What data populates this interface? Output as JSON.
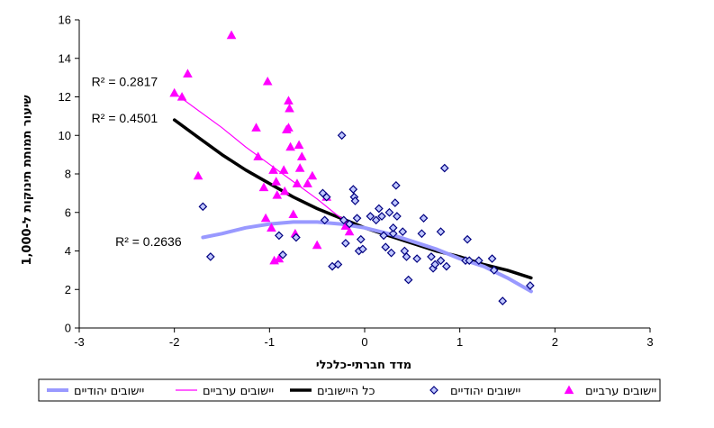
{
  "chart_data": {
    "type": "scatter",
    "xlabel": "מדד חברתי-כלכלי",
    "ylabel": "שיעור תמותת תינוקות ל-1,000",
    "xlim": [
      -3,
      3
    ],
    "ylim": [
      0,
      16
    ],
    "x_ticks": [
      -3,
      -2,
      -1,
      0,
      1,
      2,
      3
    ],
    "y_ticks": [
      0,
      2,
      4,
      6,
      8,
      10,
      12,
      14,
      16
    ],
    "x_tick_labels": [
      "-3",
      "-2",
      "-1",
      "0",
      "1",
      "2",
      "3"
    ],
    "y_tick_labels": [
      "0",
      "2",
      "4",
      "6",
      "8",
      "10",
      "12",
      "14",
      "16"
    ],
    "grid": false,
    "legend_position": "bottom",
    "series": [
      {
        "name": "יישובים ערביים",
        "kind": "points",
        "marker": "triangle",
        "color": "#FF00FF",
        "points": [
          [
            -2.0,
            12.2
          ],
          [
            -1.92,
            12.0
          ],
          [
            -1.86,
            13.2
          ],
          [
            -1.75,
            7.9
          ],
          [
            -1.4,
            15.2
          ],
          [
            -1.14,
            10.4
          ],
          [
            -1.12,
            8.9
          ],
          [
            -1.06,
            7.3
          ],
          [
            -1.04,
            5.7
          ],
          [
            -1.02,
            12.8
          ],
          [
            -0.98,
            5.2
          ],
          [
            -0.96,
            8.2
          ],
          [
            -0.93,
            7.6
          ],
          [
            -0.92,
            6.9
          ],
          [
            -0.95,
            3.5
          ],
          [
            -0.9,
            3.6
          ],
          [
            -0.85,
            8.2
          ],
          [
            -0.84,
            7.1
          ],
          [
            -0.82,
            10.3
          ],
          [
            -0.8,
            10.4
          ],
          [
            -0.8,
            11.8
          ],
          [
            -0.79,
            11.4
          ],
          [
            -0.78,
            9.4
          ],
          [
            -0.75,
            5.9
          ],
          [
            -0.73,
            4.9
          ],
          [
            -0.71,
            7.5
          ],
          [
            -0.69,
            9.5
          ],
          [
            -0.68,
            8.3
          ],
          [
            -0.66,
            8.9
          ],
          [
            -0.6,
            7.5
          ],
          [
            -0.55,
            7.9
          ],
          [
            -0.5,
            4.3
          ],
          [
            -0.4,
            6.8
          ],
          [
            -0.2,
            5.3
          ],
          [
            -0.16,
            5.0
          ]
        ]
      },
      {
        "name": "יישובים יהודיים",
        "kind": "points",
        "marker": "diamond",
        "color": "#000080",
        "fill": "#C0C8FF",
        "points": [
          [
            -1.7,
            6.3
          ],
          [
            -1.62,
            3.7
          ],
          [
            -0.9,
            4.8
          ],
          [
            -0.86,
            3.8
          ],
          [
            -0.72,
            4.7
          ],
          [
            -0.44,
            7.0
          ],
          [
            -0.42,
            5.6
          ],
          [
            -0.4,
            6.8
          ],
          [
            -0.34,
            3.2
          ],
          [
            -0.28,
            3.3
          ],
          [
            -0.24,
            10.0
          ],
          [
            -0.22,
            5.6
          ],
          [
            -0.2,
            4.4
          ],
          [
            -0.16,
            5.4
          ],
          [
            -0.12,
            7.2
          ],
          [
            -0.11,
            6.8
          ],
          [
            -0.1,
            6.6
          ],
          [
            -0.08,
            5.7
          ],
          [
            -0.06,
            4.0
          ],
          [
            -0.04,
            4.6
          ],
          [
            -0.02,
            4.1
          ],
          [
            0.06,
            5.8
          ],
          [
            0.12,
            5.6
          ],
          [
            0.15,
            6.2
          ],
          [
            0.18,
            5.8
          ],
          [
            0.2,
            4.8
          ],
          [
            0.22,
            4.2
          ],
          [
            0.26,
            6.0
          ],
          [
            0.28,
            3.9
          ],
          [
            0.3,
            4.9
          ],
          [
            0.3,
            5.2
          ],
          [
            0.32,
            6.5
          ],
          [
            0.33,
            7.4
          ],
          [
            0.34,
            5.8
          ],
          [
            0.4,
            5.0
          ],
          [
            0.42,
            4.0
          ],
          [
            0.44,
            3.7
          ],
          [
            0.46,
            2.5
          ],
          [
            0.55,
            3.6
          ],
          [
            0.6,
            4.9
          ],
          [
            0.62,
            5.7
          ],
          [
            0.7,
            3.7
          ],
          [
            0.72,
            3.1
          ],
          [
            0.74,
            3.3
          ],
          [
            0.8,
            3.5
          ],
          [
            0.8,
            5.0
          ],
          [
            0.84,
            8.3
          ],
          [
            0.86,
            3.2
          ],
          [
            1.06,
            3.5
          ],
          [
            1.08,
            4.6
          ],
          [
            1.1,
            3.5
          ],
          [
            1.2,
            3.5
          ],
          [
            1.34,
            3.6
          ],
          [
            1.36,
            3.0
          ],
          [
            1.45,
            1.4
          ],
          [
            1.74,
            2.2
          ]
        ]
      },
      {
        "name": "כל היישובים",
        "kind": "trend",
        "color": "#000000",
        "stroke_width": 3.5,
        "points": [
          [
            -2.0,
            10.8
          ],
          [
            -1.75,
            9.9
          ],
          [
            -1.5,
            9.0
          ],
          [
            -1.25,
            8.2
          ],
          [
            -1.0,
            7.5
          ],
          [
            -0.75,
            6.8
          ],
          [
            -0.5,
            6.2
          ],
          [
            -0.25,
            5.7
          ],
          [
            0.0,
            5.2
          ],
          [
            0.25,
            4.8
          ],
          [
            0.5,
            4.4
          ],
          [
            0.75,
            4.0
          ],
          [
            1.0,
            3.7
          ],
          [
            1.25,
            3.3
          ],
          [
            1.5,
            3.0
          ],
          [
            1.75,
            2.6
          ]
        ]
      },
      {
        "name": "יישובים ערביים",
        "kind": "trend",
        "color": "#FF00FF",
        "stroke_width": 1.2,
        "points": [
          [
            -2.0,
            12.2
          ],
          [
            -1.75,
            11.3
          ],
          [
            -1.5,
            10.4
          ],
          [
            -1.25,
            9.4
          ],
          [
            -1.0,
            8.5
          ],
          [
            -0.75,
            7.6
          ],
          [
            -0.5,
            6.7
          ],
          [
            -0.3,
            5.9
          ],
          [
            -0.15,
            5.4
          ]
        ]
      },
      {
        "name": "יישובים יהודיים",
        "kind": "trend",
        "color": "#9999FF",
        "stroke_width": 4,
        "points": [
          [
            -1.7,
            4.7
          ],
          [
            -1.5,
            4.9
          ],
          [
            -1.25,
            5.2
          ],
          [
            -1.0,
            5.4
          ],
          [
            -0.75,
            5.5
          ],
          [
            -0.5,
            5.5
          ],
          [
            -0.25,
            5.4
          ],
          [
            0.0,
            5.2
          ],
          [
            0.25,
            4.9
          ],
          [
            0.5,
            4.5
          ],
          [
            0.75,
            4.1
          ],
          [
            1.0,
            3.6
          ],
          [
            1.25,
            3.2
          ],
          [
            1.5,
            2.6
          ],
          [
            1.75,
            1.9
          ]
        ]
      }
    ],
    "annotations": [
      {
        "text": "R² = 0.2817",
        "x": -2.0,
        "y": 12.8
      },
      {
        "text": "R² = 0.4501",
        "x": -2.0,
        "y": 10.9
      },
      {
        "text": "R² = 0.2636",
        "x": -1.75,
        "y": 4.5
      }
    ],
    "legend": [
      {
        "label": "יישובים יהודיים",
        "kind": "line",
        "color": "#9999FF"
      },
      {
        "label": "יישובים ערביים",
        "kind": "line",
        "color": "#FF00FF"
      },
      {
        "label": "כל היישובים",
        "kind": "line",
        "color": "#000000"
      },
      {
        "label": "יישובים יהודיים",
        "kind": "diamond",
        "color": "#000080"
      },
      {
        "label": "יישובים ערביים",
        "kind": "triangle",
        "color": "#FF00FF"
      }
    ]
  }
}
